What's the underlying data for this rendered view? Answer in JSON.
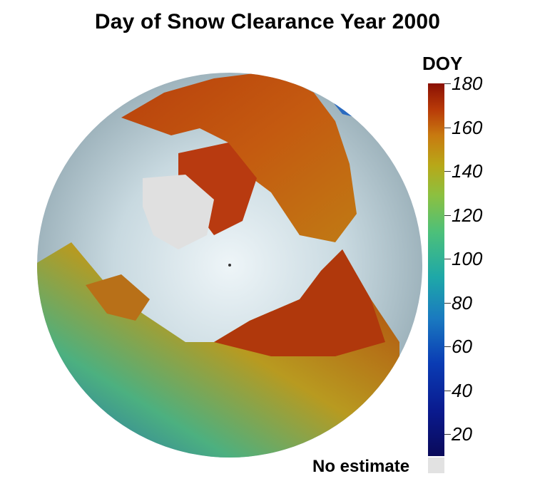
{
  "title": "Day of Snow Clearance Year 2000",
  "colorbar": {
    "label": "DOY",
    "ticks": [
      180,
      160,
      140,
      120,
      100,
      80,
      60,
      40,
      20
    ],
    "range": [
      10,
      180
    ],
    "colors": [
      "#0a0a5a",
      "#0a3cb4",
      "#1ea8a8",
      "#4cc07a",
      "#b8a818",
      "#c87a10",
      "#8a1004"
    ],
    "no_estimate_label": "No estimate",
    "no_estimate_color": "#e2e2e2"
  },
  "map": {
    "projection": "polar stereographic",
    "ocean_color": "#b9cbd3"
  }
}
